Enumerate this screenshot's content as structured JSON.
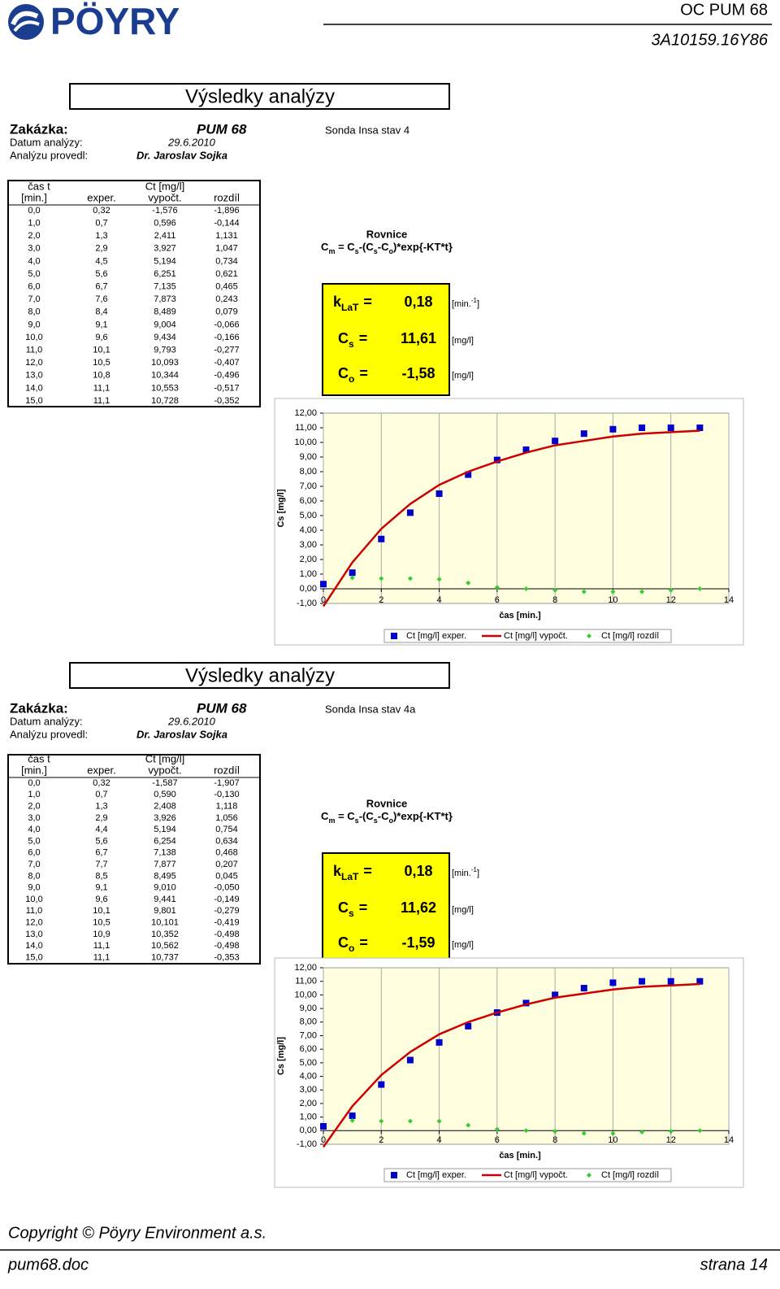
{
  "header": {
    "logo": "PÖYRY",
    "doc_id": "OC PUM 68",
    "project": "3A10159.16Y86"
  },
  "sections": [
    {
      "title": "Výsledky analýzy",
      "order_label": "Zakázka:",
      "order": "PUM 68",
      "probe": "Sonda Insa stav 4",
      "date_label": "Datum analýzy:",
      "date": "29.6.2010",
      "analyst_label": "Analýzu provedl:",
      "analyst": "Dr. Jaroslav Sojka",
      "table": {
        "header1": [
          "čas t",
          "Ct [mg/l]"
        ],
        "header2": [
          "[min.]",
          "exper.",
          "vypočt.",
          "rozdíl"
        ],
        "rows": [
          [
            "0,0",
            "0,32",
            "-1,576",
            "-1,896"
          ],
          [
            "1,0",
            "0,7",
            "0,596",
            "-0,144"
          ],
          [
            "2,0",
            "1,3",
            "2,411",
            "1,131"
          ],
          [
            "3,0",
            "2,9",
            "3,927",
            "1,047"
          ],
          [
            "4,0",
            "4,5",
            "5,194",
            "0,734"
          ],
          [
            "5,0",
            "5,6",
            "6,251",
            "0,621"
          ],
          [
            "6,0",
            "6,7",
            "7,135",
            "0,465"
          ],
          [
            "7,0",
            "7,6",
            "7,873",
            "0,243"
          ],
          [
            "8,0",
            "8,4",
            "8,489",
            "0,079"
          ],
          [
            "9,0",
            "9,1",
            "9,004",
            "-0,066"
          ],
          [
            "10,0",
            "9,6",
            "9,434",
            "-0,166"
          ],
          [
            "11,0",
            "10,1",
            "9,793",
            "-0,277"
          ],
          [
            "12,0",
            "10,5",
            "10,093",
            "-0,407"
          ],
          [
            "13,0",
            "10,8",
            "10,344",
            "-0,496"
          ],
          [
            "14,0",
            "11,1",
            "10,553",
            "-0,517"
          ],
          [
            "15,0",
            "11,1",
            "10,728",
            "-0,352"
          ]
        ]
      },
      "equation": {
        "title": "Rovnice",
        "parts": [
          "C",
          "m",
          " = C",
          "s",
          "-(C",
          "s",
          "-C",
          "o",
          ")*exp{-KT*t}"
        ]
      },
      "params": [
        {
          "symbol": "k",
          "sub": "LaT",
          "eq": "=",
          "value": "0,18",
          "unit": "[min.",
          "unit_sup": "-1",
          "unit_end": "]"
        },
        {
          "symbol": "C",
          "sub": "s",
          "eq": "=",
          "value": "11,61",
          "unit": "[mg/l]"
        },
        {
          "symbol": "C",
          "sub": "o",
          "eq": "=",
          "value": "-1,58",
          "unit": "[mg/l]"
        }
      ],
      "chart_data": {
        "type": "scatter-line",
        "xlabel": "čas [min.]",
        "ylabel": "Cs [mg/l]",
        "x": [
          0,
          1,
          2,
          3,
          4,
          5,
          6,
          7,
          8,
          9,
          10,
          11,
          12,
          13
        ],
        "series": [
          {
            "name": "Ct [mg/l] exper.",
            "color": "#0000cc",
            "marker": "square",
            "values": [
              0.32,
              1.1,
              3.4,
              5.2,
              6.5,
              7.8,
              8.8,
              9.5,
              10.1,
              10.6,
              10.9,
              11.0,
              11.0,
              11.0
            ]
          },
          {
            "name": "Ct [mg/l] vypočt.",
            "color": "#cc0000",
            "marker": "line",
            "values": [
              -1.2,
              1.8,
              4.1,
              5.8,
              7.1,
              8.0,
              8.7,
              9.3,
              9.8,
              10.1,
              10.4,
              10.6,
              10.7,
              10.8
            ]
          },
          {
            "name": "Ct [mg/l] rozdíl",
            "color": "#33cc33",
            "marker": "diamond",
            "values": [
              null,
              0.75,
              0.7,
              0.7,
              0.65,
              0.4,
              0.1,
              0,
              -0.1,
              -0.2,
              -0.2,
              -0.2,
              -0.1,
              0
            ]
          }
        ],
        "xlim": [
          0,
          14
        ],
        "xticks": [
          0,
          2,
          4,
          6,
          8,
          10,
          12,
          14
        ],
        "ylim": [
          -1,
          12
        ],
        "yticks": [
          {
            "value": -1,
            "label": "-1,00"
          },
          {
            "value": 0,
            "label": "0,00"
          },
          {
            "value": 1,
            "label": "1,00"
          },
          {
            "value": 2,
            "label": "2,00"
          },
          {
            "value": 3,
            "label": "3,00"
          },
          {
            "value": 4,
            "label": "4,00"
          },
          {
            "value": 5,
            "label": "5,00"
          },
          {
            "value": 6,
            "label": "6,00"
          },
          {
            "value": 7,
            "label": "7,00"
          },
          {
            "value": 8,
            "label": "8,00"
          },
          {
            "value": 9,
            "label": "9,00"
          },
          {
            "value": 10,
            "label": "10,00"
          },
          {
            "value": 11,
            "label": "11,00"
          },
          {
            "value": 12,
            "label": "12,00"
          }
        ],
        "grid": true,
        "legend": "bottom"
      }
    },
    {
      "title": "Výsledky analýzy",
      "order_label": "Zakázka:",
      "order": "PUM 68",
      "probe": "Sonda Insa stav 4a",
      "date_label": "Datum analýzy:",
      "date": "29.6.2010",
      "analyst_label": "Analýzu provedl:",
      "analyst": "Dr. Jaroslav Sojka",
      "table": {
        "header1": [
          "čas t",
          "Ct [mg/l]"
        ],
        "header2": [
          "[min.]",
          "exper.",
          "vypočt.",
          "rozdíl"
        ],
        "rows": [
          [
            "0,0",
            "0,32",
            "-1,587",
            "-1,907"
          ],
          [
            "1,0",
            "0,7",
            "0,590",
            "-0,130"
          ],
          [
            "2,0",
            "1,3",
            "2,408",
            "1,118"
          ],
          [
            "3,0",
            "2,9",
            "3,926",
            "1,056"
          ],
          [
            "4,0",
            "4,4",
            "5,194",
            "0,754"
          ],
          [
            "5,0",
            "5,6",
            "6,254",
            "0,634"
          ],
          [
            "6,0",
            "6,7",
            "7,138",
            "0,468"
          ],
          [
            "7,0",
            "7,7",
            "7,877",
            "0,207"
          ],
          [
            "8,0",
            "8,5",
            "8,495",
            "0,045"
          ],
          [
            "9,0",
            "9,1",
            "9,010",
            "-0,050"
          ],
          [
            "10,0",
            "9,6",
            "9,441",
            "-0,149"
          ],
          [
            "11,0",
            "10,1",
            "9,801",
            "-0,279"
          ],
          [
            "12,0",
            "10,5",
            "10,101",
            "-0,419"
          ],
          [
            "13,0",
            "10,9",
            "10,352",
            "-0,498"
          ],
          [
            "14,0",
            "11,1",
            "10,562",
            "-0,498"
          ],
          [
            "15,0",
            "11,1",
            "10,737",
            "-0,353"
          ]
        ]
      },
      "equation": {
        "title": "Rovnice",
        "parts": [
          "C",
          "m",
          " = C",
          "s",
          "-(C",
          "s",
          "-C",
          "o",
          ")*exp{-KT*t}"
        ]
      },
      "params": [
        {
          "symbol": "k",
          "sub": "LaT",
          "eq": "=",
          "value": "0,18",
          "unit": "[min.",
          "unit_sup": "-1",
          "unit_end": "]"
        },
        {
          "symbol": "C",
          "sub": "s",
          "eq": "=",
          "value": "11,62",
          "unit": "[mg/l]"
        },
        {
          "symbol": "C",
          "sub": "o",
          "eq": "=",
          "value": "-1,59",
          "unit": "[mg/l]"
        }
      ],
      "chart_data": {
        "type": "scatter-line",
        "xlabel": "čas [min.]",
        "ylabel": "Cs [mg/l]",
        "x": [
          0,
          1,
          2,
          3,
          4,
          5,
          6,
          7,
          8,
          9,
          10,
          11,
          12,
          13
        ],
        "series": [
          {
            "name": "Ct [mg/l] exper.",
            "color": "#0000cc",
            "marker": "square",
            "values": [
              0.32,
              1.1,
              3.4,
              5.2,
              6.5,
              7.7,
              8.7,
              9.4,
              10.0,
              10.5,
              10.9,
              11.0,
              11.0,
              11.0
            ]
          },
          {
            "name": "Ct [mg/l] vypočt.",
            "color": "#cc0000",
            "marker": "line",
            "values": [
              -1.2,
              1.8,
              4.1,
              5.8,
              7.1,
              8.0,
              8.7,
              9.3,
              9.8,
              10.1,
              10.4,
              10.6,
              10.7,
              10.8
            ]
          },
          {
            "name": "Ct [mg/l] rozdíl",
            "color": "#33cc33",
            "marker": "diamond",
            "values": [
              null,
              0.75,
              0.7,
              0.7,
              0.7,
              0.4,
              0.1,
              0,
              -0.05,
              -0.2,
              -0.2,
              -0.1,
              -0.05,
              0
            ]
          }
        ],
        "xlim": [
          0,
          14
        ],
        "xticks": [
          0,
          2,
          4,
          6,
          8,
          10,
          12,
          14
        ],
        "ylim": [
          -1,
          12
        ],
        "yticks": [
          {
            "value": -1,
            "label": "-1,00"
          },
          {
            "value": 0,
            "label": "0,00"
          },
          {
            "value": 1,
            "label": "1,00"
          },
          {
            "value": 2,
            "label": "2,00"
          },
          {
            "value": 3,
            "label": "3,00"
          },
          {
            "value": 4,
            "label": "4,00"
          },
          {
            "value": 5,
            "label": "5,00"
          },
          {
            "value": 6,
            "label": "6,00"
          },
          {
            "value": 7,
            "label": "7,00"
          },
          {
            "value": 8,
            "label": "8,00"
          },
          {
            "value": 9,
            "label": "9,00"
          },
          {
            "value": 10,
            "label": "10,00"
          },
          {
            "value": 11,
            "label": "11,00"
          },
          {
            "value": 12,
            "label": "12,00"
          }
        ],
        "grid": true,
        "legend": "bottom"
      }
    }
  ],
  "footer": {
    "copyright": "Copyright © Pöyry Environment a.s.",
    "file": "pum68.doc",
    "page": "strana 14"
  }
}
